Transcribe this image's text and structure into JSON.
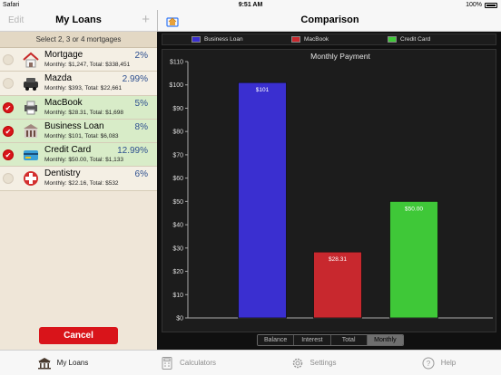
{
  "status_bar": {
    "carrier": "Safari",
    "time": "9:51 AM",
    "battery": "100%"
  },
  "left": {
    "edit_label": "Edit",
    "title": "My Loans",
    "add_label": "+",
    "hint": "Select 2, 3 or 4 mortgages",
    "cancel_label": "Cancel",
    "loans": [
      {
        "name": "Mortgage",
        "rate": "2%",
        "details": "Monthly: $1,247, Total: $338,451",
        "selected": false,
        "icon": "house-icon"
      },
      {
        "name": "Mazda",
        "rate": "2.99%",
        "details": "Monthly: $393, Total: $22,661",
        "selected": false,
        "icon": "car-icon"
      },
      {
        "name": "MacBook",
        "rate": "5%",
        "details": "Monthly: $28.31, Total: $1,698",
        "selected": true,
        "icon": "printer-icon"
      },
      {
        "name": "Business Loan",
        "rate": "8%",
        "details": "Monthly: $101, Total: $6,083",
        "selected": true,
        "icon": "building-icon"
      },
      {
        "name": "Credit Card",
        "rate": "12.99%",
        "details": "Monthly: $50.00, Total: $1,133",
        "selected": true,
        "icon": "credit-card-icon"
      },
      {
        "name": "Dentistry",
        "rate": "6%",
        "details": "Monthly: $22.16, Total: $532",
        "selected": false,
        "icon": "medical-cross-icon"
      }
    ]
  },
  "right": {
    "title": "Comparison",
    "segments": [
      "Balance",
      "Interest",
      "Total",
      "Monthly"
    ],
    "active_segment": "Monthly"
  },
  "chart_data": {
    "type": "bar",
    "title": "Monthly Payment",
    "categories": [
      "Business Loan",
      "MacBook",
      "Credit Card"
    ],
    "values": [
      101,
      28.31,
      50.0
    ],
    "value_labels": [
      "$101",
      "$28.31",
      "$50.00"
    ],
    "colors": [
      "#3a2fd0",
      "#c8282e",
      "#3fc838"
    ],
    "ylim": [
      0,
      110
    ],
    "yticks": [
      "$0",
      "$10",
      "$20",
      "$30",
      "$40",
      "$50",
      "$60",
      "$70",
      "$80",
      "$90",
      "$100",
      "$110"
    ],
    "legend_position": "top"
  },
  "tabs": [
    {
      "label": "My Loans",
      "icon": "bank-icon",
      "active": true
    },
    {
      "label": "Calculators",
      "icon": "calculator-icon",
      "active": false
    },
    {
      "label": "Settings",
      "icon": "gear-icon",
      "active": false
    },
    {
      "label": "Help",
      "icon": "help-icon",
      "active": false
    }
  ]
}
